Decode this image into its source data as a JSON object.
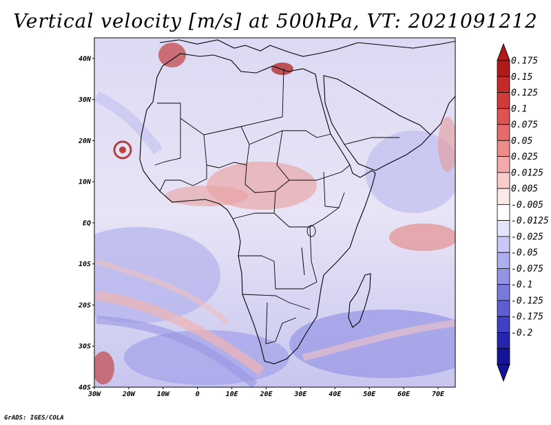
{
  "title": "Vertical velocity [m/s] at 500hPa, VT: 2021091212",
  "footer": "GrADS: IGES/COLA",
  "map": {
    "lat_labels": [
      "40N",
      "30N",
      "20N",
      "10N",
      "EQ",
      "10S",
      "20S",
      "30S",
      "40S"
    ],
    "lon_labels": [
      "30W",
      "20W",
      "10W",
      "0",
      "10E",
      "20E",
      "30E",
      "40E",
      "50E",
      "60E",
      "70E"
    ],
    "lat_range": [
      -40,
      45
    ],
    "lon_range": [
      -30,
      75
    ]
  },
  "colorbar": {
    "levels": [
      "0.175",
      "0.15",
      "0.125",
      "0.1",
      "0.075",
      "0.05",
      "0.025",
      "0.0125",
      "0.005",
      "-0.005",
      "-0.0125",
      "-0.025",
      "-0.05",
      "-0.075",
      "-0.1",
      "-0.125",
      "-0.175",
      "-0.2"
    ],
    "colors": [
      "#b01a1a",
      "#c42a2a",
      "#d23a3a",
      "#de5252",
      "#e66a6a",
      "#ee8c8c",
      "#f4aaaa",
      "#f9cccc",
      "#fde8e8",
      "#ffffff",
      "#e4e4fb",
      "#c8c8f6",
      "#aeaeee",
      "#9494e6",
      "#7a7ade",
      "#5e5ed2",
      "#4040c6",
      "#2525b0",
      "#14149a"
    ]
  }
}
